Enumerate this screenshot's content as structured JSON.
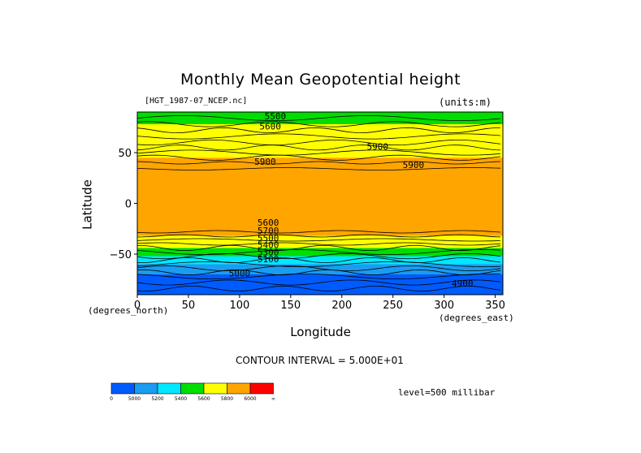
{
  "chart_data": {
    "type": "heatmap",
    "title": "Monthly Mean Geopotential height",
    "file_label": "[HGT_1987-07_NCEP.nc]",
    "units_label": "(units:m)",
    "xlabel": "Longitude",
    "ylabel": "Latitude",
    "x_units": "(degrees_east)",
    "y_units": "(degrees_north)",
    "xlim": [
      0,
      357.5
    ],
    "ylim": [
      -90,
      90
    ],
    "x_ticks": [
      0,
      50,
      100,
      150,
      200,
      250,
      300,
      350
    ],
    "y_ticks": [
      -50,
      0,
      50
    ],
    "x_tick_labels": [
      "0",
      "50",
      "100",
      "150",
      "200",
      "250",
      "300",
      "350"
    ],
    "y_tick_labels": [
      "-50",
      "0",
      "50"
    ],
    "contour_interval_text": "CONTOUR INTERVAL = 5.000E+01",
    "level_text": "level=500 millibar",
    "color_levels": [
      {
        "label": "0",
        "color": "#005bff"
      },
      {
        "label": "5000",
        "color": "#1a9cf0"
      },
      {
        "label": "5200",
        "color": "#00e8ff"
      },
      {
        "label": "5400",
        "color": "#00dd00"
      },
      {
        "label": "5600",
        "color": "#ffff00"
      },
      {
        "label": "5800",
        "color": "#ffa500"
      },
      {
        "label": "6000",
        "color": "#ff0000"
      },
      {
        "label": "∞",
        "color": null
      }
    ],
    "latitude_bands": [
      {
        "lat_from": 90,
        "lat_to": 78,
        "level": 5400
      },
      {
        "lat_from": 78,
        "lat_to": 63,
        "level": 5600
      },
      {
        "lat_from": 63,
        "lat_to": 45,
        "level": 5600
      },
      {
        "lat_from": 45,
        "lat_to": -32,
        "level": 5800
      },
      {
        "lat_from": -32,
        "lat_to": -44,
        "level": 5600
      },
      {
        "lat_from": -44,
        "lat_to": -52,
        "level": 5400
      },
      {
        "lat_from": -52,
        "lat_to": -60,
        "level": 5200
      },
      {
        "lat_from": -60,
        "lat_to": -70,
        "level": 5000
      },
      {
        "lat_from": -70,
        "lat_to": -90,
        "level": 0
      }
    ],
    "contour_labels": [
      {
        "text": "5500",
        "lon": 135,
        "lat": 83
      },
      {
        "text": "5600",
        "lon": 130,
        "lat": 73
      },
      {
        "text": "5900",
        "lon": 235,
        "lat": 53
      },
      {
        "text": "5900",
        "lon": 270,
        "lat": 35
      },
      {
        "text": "5900",
        "lon": 125,
        "lat": 38
      },
      {
        "text": "5600",
        "lon": 128,
        "lat": -22
      },
      {
        "text": "5700",
        "lon": 128,
        "lat": -30
      },
      {
        "text": "5500",
        "lon": 128,
        "lat": -37
      },
      {
        "text": "5400",
        "lon": 128,
        "lat": -44
      },
      {
        "text": "5300",
        "lon": 128,
        "lat": -51
      },
      {
        "text": "5100",
        "lon": 128,
        "lat": -58
      },
      {
        "text": "5000",
        "lon": 100,
        "lat": -72
      },
      {
        "text": "4900",
        "lon": 318,
        "lat": -82
      }
    ]
  }
}
